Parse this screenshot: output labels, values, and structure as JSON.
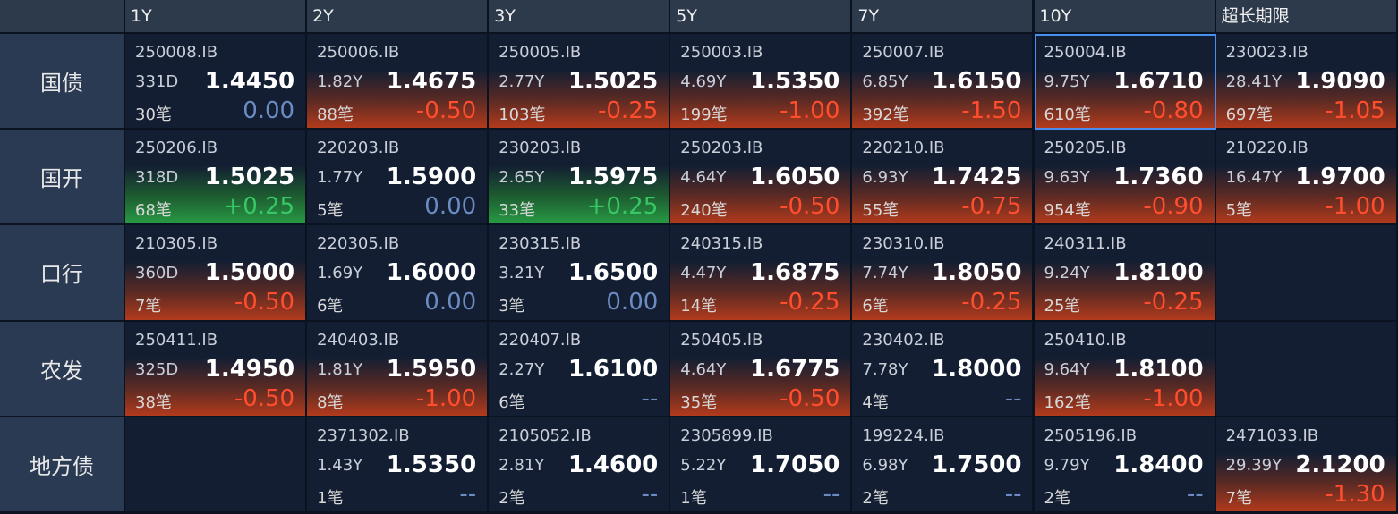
{
  "columns": [
    "1Y",
    "2Y",
    "3Y",
    "5Y",
    "7Y",
    "10Y",
    "超长期限"
  ],
  "rows": [
    {
      "label": "国债",
      "cells": [
        {
          "code": "250008.IB",
          "term": "331D",
          "yield": "1.4450",
          "count": "30笔",
          "change": "0.00"
        },
        {
          "code": "250006.IB",
          "term": "1.82Y",
          "yield": "1.4675",
          "count": "88笔",
          "change": "-0.50"
        },
        {
          "code": "250005.IB",
          "term": "2.77Y",
          "yield": "1.5025",
          "count": "103笔",
          "change": "-0.25"
        },
        {
          "code": "250003.IB",
          "term": "4.69Y",
          "yield": "1.5350",
          "count": "199笔",
          "change": "-1.00"
        },
        {
          "code": "250007.IB",
          "term": "6.85Y",
          "yield": "1.6150",
          "count": "392笔",
          "change": "-1.50"
        },
        {
          "code": "250004.IB",
          "term": "9.75Y",
          "yield": "1.6710",
          "count": "610笔",
          "change": "-0.80"
        },
        {
          "code": "230023.IB",
          "term": "28.41Y",
          "yield": "1.9090",
          "count": "697笔",
          "change": "-1.05"
        }
      ]
    },
    {
      "label": "国开",
      "cells": [
        {
          "code": "250206.IB",
          "term": "318D",
          "yield": "1.5025",
          "count": "68笔",
          "change": "+0.25"
        },
        {
          "code": "220203.IB",
          "term": "1.77Y",
          "yield": "1.5900",
          "count": "5笔",
          "change": "0.00"
        },
        {
          "code": "230203.IB",
          "term": "2.65Y",
          "yield": "1.5975",
          "count": "33笔",
          "change": "+0.25"
        },
        {
          "code": "250203.IB",
          "term": "4.64Y",
          "yield": "1.6050",
          "count": "240笔",
          "change": "-0.50"
        },
        {
          "code": "220210.IB",
          "term": "6.93Y",
          "yield": "1.7425",
          "count": "55笔",
          "change": "-0.75"
        },
        {
          "code": "250205.IB",
          "term": "9.63Y",
          "yield": "1.7360",
          "count": "954笔",
          "change": "-0.90"
        },
        {
          "code": "210220.IB",
          "term": "16.47Y",
          "yield": "1.9700",
          "count": "5笔",
          "change": "-1.00"
        }
      ]
    },
    {
      "label": "口行",
      "cells": [
        {
          "code": "210305.IB",
          "term": "360D",
          "yield": "1.5000",
          "count": "7笔",
          "change": "-0.50"
        },
        {
          "code": "220305.IB",
          "term": "1.69Y",
          "yield": "1.6000",
          "count": "6笔",
          "change": "0.00"
        },
        {
          "code": "230315.IB",
          "term": "3.21Y",
          "yield": "1.6500",
          "count": "3笔",
          "change": "0.00"
        },
        {
          "code": "240315.IB",
          "term": "4.47Y",
          "yield": "1.6875",
          "count": "14笔",
          "change": "-0.25"
        },
        {
          "code": "230310.IB",
          "term": "7.74Y",
          "yield": "1.8050",
          "count": "6笔",
          "change": "-0.25"
        },
        {
          "code": "240311.IB",
          "term": "9.24Y",
          "yield": "1.8100",
          "count": "25笔",
          "change": "-0.25"
        },
        null
      ]
    },
    {
      "label": "农发",
      "cells": [
        {
          "code": "250411.IB",
          "term": "325D",
          "yield": "1.4950",
          "count": "38笔",
          "change": "-0.50"
        },
        {
          "code": "240403.IB",
          "term": "1.81Y",
          "yield": "1.5950",
          "count": "8笔",
          "change": "-1.00"
        },
        {
          "code": "220407.IB",
          "term": "2.27Y",
          "yield": "1.6100",
          "count": "6笔",
          "change": "--"
        },
        {
          "code": "250405.IB",
          "term": "4.64Y",
          "yield": "1.6775",
          "count": "35笔",
          "change": "-0.50"
        },
        {
          "code": "230402.IB",
          "term": "7.78Y",
          "yield": "1.8000",
          "count": "4笔",
          "change": "--"
        },
        {
          "code": "250410.IB",
          "term": "9.64Y",
          "yield": "1.8100",
          "count": "162笔",
          "change": "-1.00"
        },
        null
      ]
    },
    {
      "label": "地方债",
      "cells": [
        null,
        {
          "code": "2371302.IB",
          "term": "1.43Y",
          "yield": "1.5350",
          "count": "1笔",
          "change": "--"
        },
        {
          "code": "2105052.IB",
          "term": "2.81Y",
          "yield": "1.4600",
          "count": "2笔",
          "change": "--"
        },
        {
          "code": "2305899.IB",
          "term": "5.22Y",
          "yield": "1.7050",
          "count": "1笔",
          "change": "--"
        },
        {
          "code": "199224.IB",
          "term": "6.98Y",
          "yield": "1.7500",
          "count": "2笔",
          "change": "--"
        },
        {
          "code": "2505196.IB",
          "term": "9.79Y",
          "yield": "1.8400",
          "count": "2笔",
          "change": "--"
        },
        {
          "code": "2471033.IB",
          "term": "29.39Y",
          "yield": "2.1200",
          "count": "7笔",
          "change": "-1.30"
        }
      ]
    }
  ]
}
